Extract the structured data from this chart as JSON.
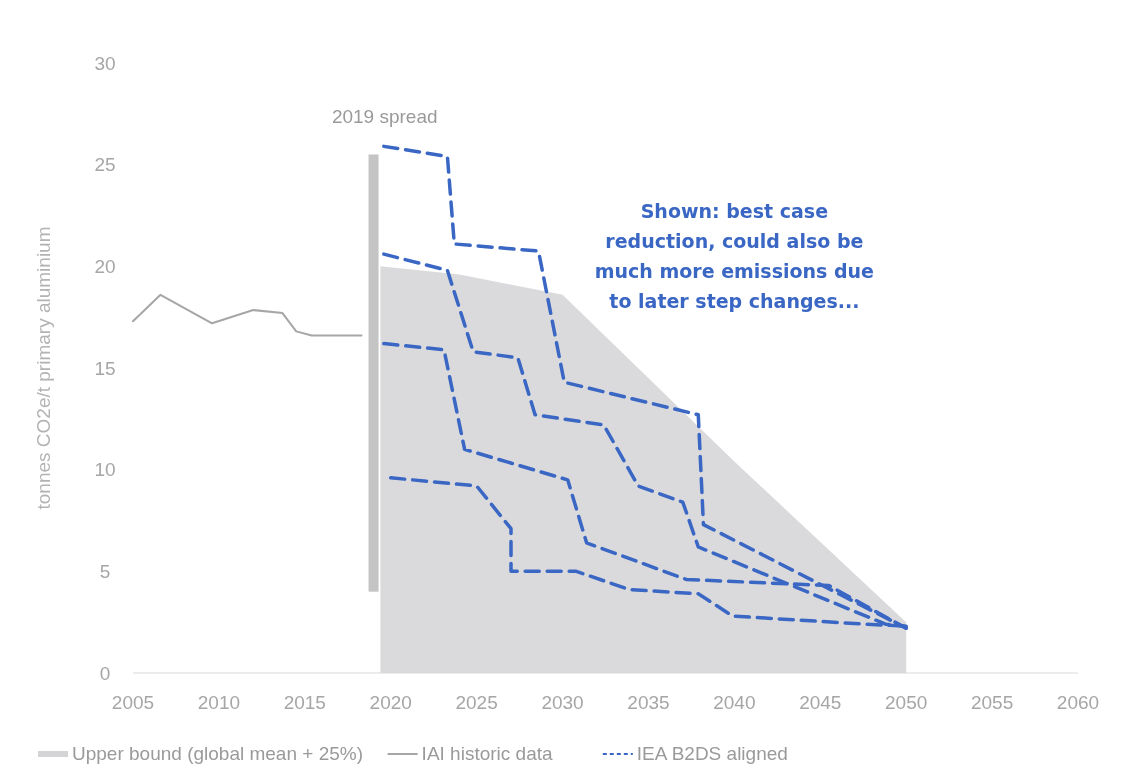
{
  "chart_data": {
    "type": "line",
    "ylabel": "tonnes CO2e/t primary aluminium",
    "xlim": [
      2005,
      2060
    ],
    "xticks": [
      2005,
      2010,
      2015,
      2020,
      2025,
      2030,
      2035,
      2040,
      2045,
      2050,
      2055,
      2060
    ],
    "ylim": [
      0,
      30
    ],
    "yticks": [
      0,
      5,
      10,
      15,
      20,
      25,
      30
    ],
    "grid": false,
    "legend": "bottom",
    "marker": "none",
    "series": [
      {
        "name": "Upper bound (global mean + 25%)",
        "type": "area",
        "color": "#d4d4d6",
        "x": [
          2019.4,
          2024,
          2030,
          2040,
          2050
        ],
        "values": [
          20,
          19.6,
          18.6,
          10.4,
          2.5
        ]
      },
      {
        "type": "bar",
        "color": "#c4c4c4",
        "x": [
          2019
        ],
        "base": [
          4
        ],
        "values": [
          21.5
        ]
      },
      {
        "name": "IAI historic data",
        "color": "#a6a6a6",
        "line_style": "solid",
        "x": [
          2005,
          2006.6,
          2009.6,
          2012,
          2013.7,
          2014.5,
          2015.4,
          2018.3
        ],
        "values": [
          17.3,
          18.6,
          17.2,
          17.85,
          17.7,
          16.8,
          16.6,
          16.6
        ]
      },
      {
        "name": "IEA B2DS aligned",
        "type": "line",
        "color": "#3a66c4",
        "line_style": "dashed",
        "x": [
          2019.6,
          2023.3,
          2023.7,
          2028.6,
          2030.1,
          2037.9,
          2038.2,
          2050
        ],
        "values": [
          25.9,
          25.4,
          21.1,
          20.75,
          14.3,
          12.7,
          7.3,
          2.2
        ]
      },
      {
        "type": "line",
        "color": "#3a66c4",
        "line_style": "dashed",
        "x": [
          2019.6,
          2023.3,
          2024.8,
          2027.4,
          2028.4,
          2032.4,
          2034.4,
          2037,
          2037.9,
          2048.8,
          2050
        ],
        "values": [
          20.6,
          19.8,
          15.8,
          15.5,
          12.7,
          12.2,
          9.2,
          8.4,
          6.2,
          2.4,
          2.3
        ]
      },
      {
        "type": "line",
        "color": "#3a66c4",
        "line_style": "dashed",
        "x": [
          2019.6,
          2023.1,
          2024.3,
          2030.3,
          2031.4,
          2037.2,
          2045.5,
          2050
        ],
        "values": [
          16.2,
          15.9,
          11,
          9.5,
          6.4,
          4.6,
          4.3,
          2.2
        ]
      },
      {
        "type": "line",
        "color": "#3a66c4",
        "line_style": "dashed",
        "x": [
          2020,
          2025,
          2027,
          2027,
          2030.8,
          2033.9,
          2037.9,
          2039.9,
          2047.7,
          2050
        ],
        "values": [
          9.6,
          9.2,
          7.1,
          5,
          5,
          4.1,
          3.9,
          2.8,
          2.4,
          2.3
        ]
      }
    ],
    "annotations": [
      "2019 spread",
      "Shown: best case reduction, could also be much more emissions due to later step changes..."
    ]
  }
}
